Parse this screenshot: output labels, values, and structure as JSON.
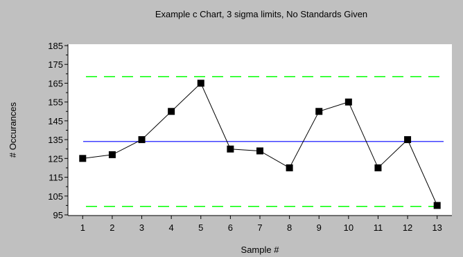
{
  "chart_data": {
    "type": "line",
    "title": "Example c Chart, 3 sigma limits, No Standards Given",
    "xlabel": "Sample #",
    "ylabel": "# Occurances",
    "x": [
      1,
      2,
      3,
      4,
      5,
      6,
      7,
      8,
      9,
      10,
      11,
      12,
      13
    ],
    "xlim": [
      0.5,
      13.5
    ],
    "ylim": [
      95,
      185
    ],
    "y_ticks": [
      95,
      105,
      115,
      125,
      135,
      145,
      155,
      165,
      175,
      185
    ],
    "series": [
      {
        "values": [
          125,
          127,
          135,
          150,
          165,
          130,
          129,
          120,
          150,
          155,
          120,
          135,
          100
        ]
      }
    ],
    "center_line": 134,
    "upper_control_limit": 168.5,
    "lower_control_limit": 99.5,
    "grid": false,
    "colors": {
      "background": "#c0c0c0",
      "plot_area": "#ffffff",
      "series": "#000000",
      "center_line": "#0000ff",
      "control_limits": "#00ff00"
    }
  }
}
